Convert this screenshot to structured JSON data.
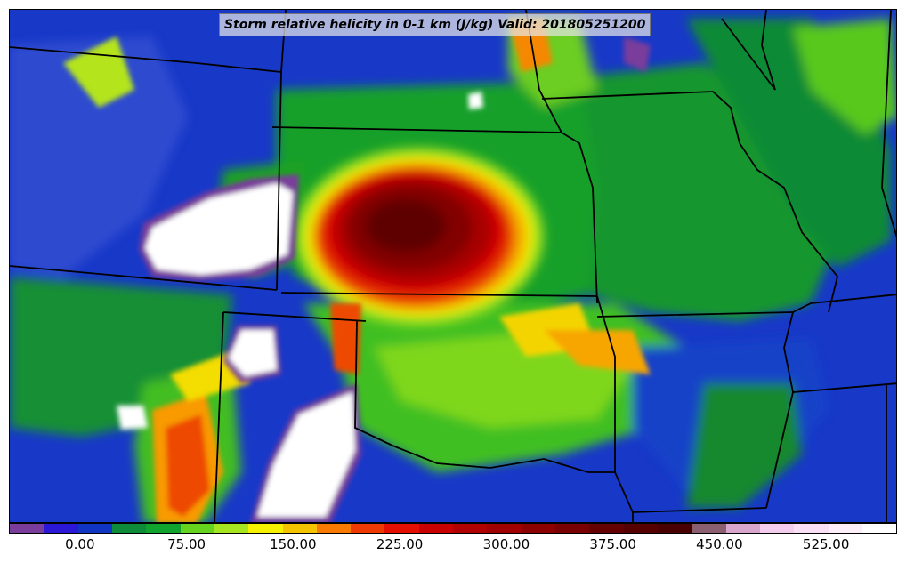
{
  "title": "Storm relative helicity in 0-1 km (J/kg) Valid: 201805251200",
  "colorbar": {
    "colors": [
      "#7a3d9b",
      "#2b17d6",
      "#1135c3",
      "#0d8b3a",
      "#10a32e",
      "#66d41e",
      "#a6e620",
      "#f7f200",
      "#f4c400",
      "#f87a00",
      "#ee3a00",
      "#e40f00",
      "#c80000",
      "#b10000",
      "#a00000",
      "#8c0000",
      "#780000",
      "#640000",
      "#560000",
      "#480000",
      "#8a6070",
      "#d8a6cc",
      "#f4cdee",
      "#f8dff6",
      "#fceffa",
      "#ffffff"
    ],
    "ticks": [
      "0.00",
      "75.00",
      "150.00",
      "225.00",
      "300.00",
      "375.00",
      "450.00",
      "525.00"
    ],
    "tick_values": [
      0,
      75,
      150,
      225,
      300,
      375,
      450,
      525
    ],
    "range": [
      -50,
      575
    ]
  },
  "map": {
    "projection": "lambert",
    "features": [
      "state-borders"
    ],
    "max_region": "high-helicity-core"
  }
}
